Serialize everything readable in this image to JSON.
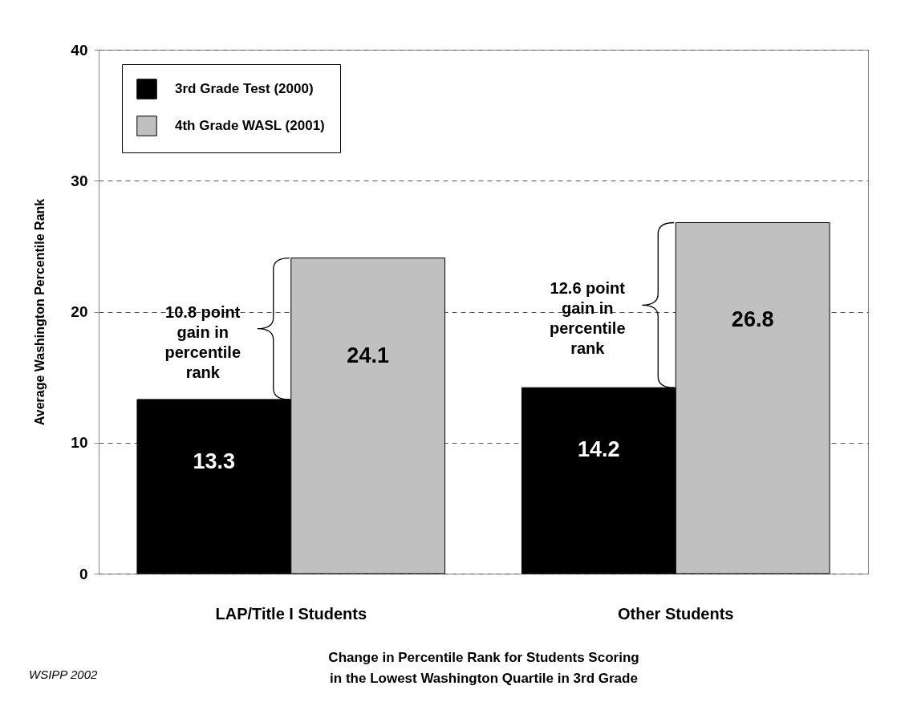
{
  "chart_data": {
    "type": "bar",
    "xlabel": "Change in Percentile Rank for Students Scoring\nin the Lowest Washington Quartile in 3rd Grade",
    "ylabel": "Average Washington Percentile Rank",
    "categories": [
      "LAP/Title I Students",
      "Other Students"
    ],
    "series": [
      {
        "name": "3rd Grade Test (2000)",
        "color": "#000000",
        "values": [
          13.3,
          14.2
        ]
      },
      {
        "name": "4th Grade WASL (2001)",
        "color": "#c0c0c0",
        "values": [
          24.1,
          26.8
        ]
      }
    ],
    "ylim": [
      0,
      40
    ],
    "yticks": [
      0,
      10,
      20,
      30,
      40
    ],
    "grid": "y",
    "legend": "top left",
    "data_labels": true,
    "annotations": [
      "10.8 point\ngain in\npercentile\nrank",
      "12.6 point\ngain in\npercentile\nrank",
      "WSIPP 2002"
    ]
  }
}
